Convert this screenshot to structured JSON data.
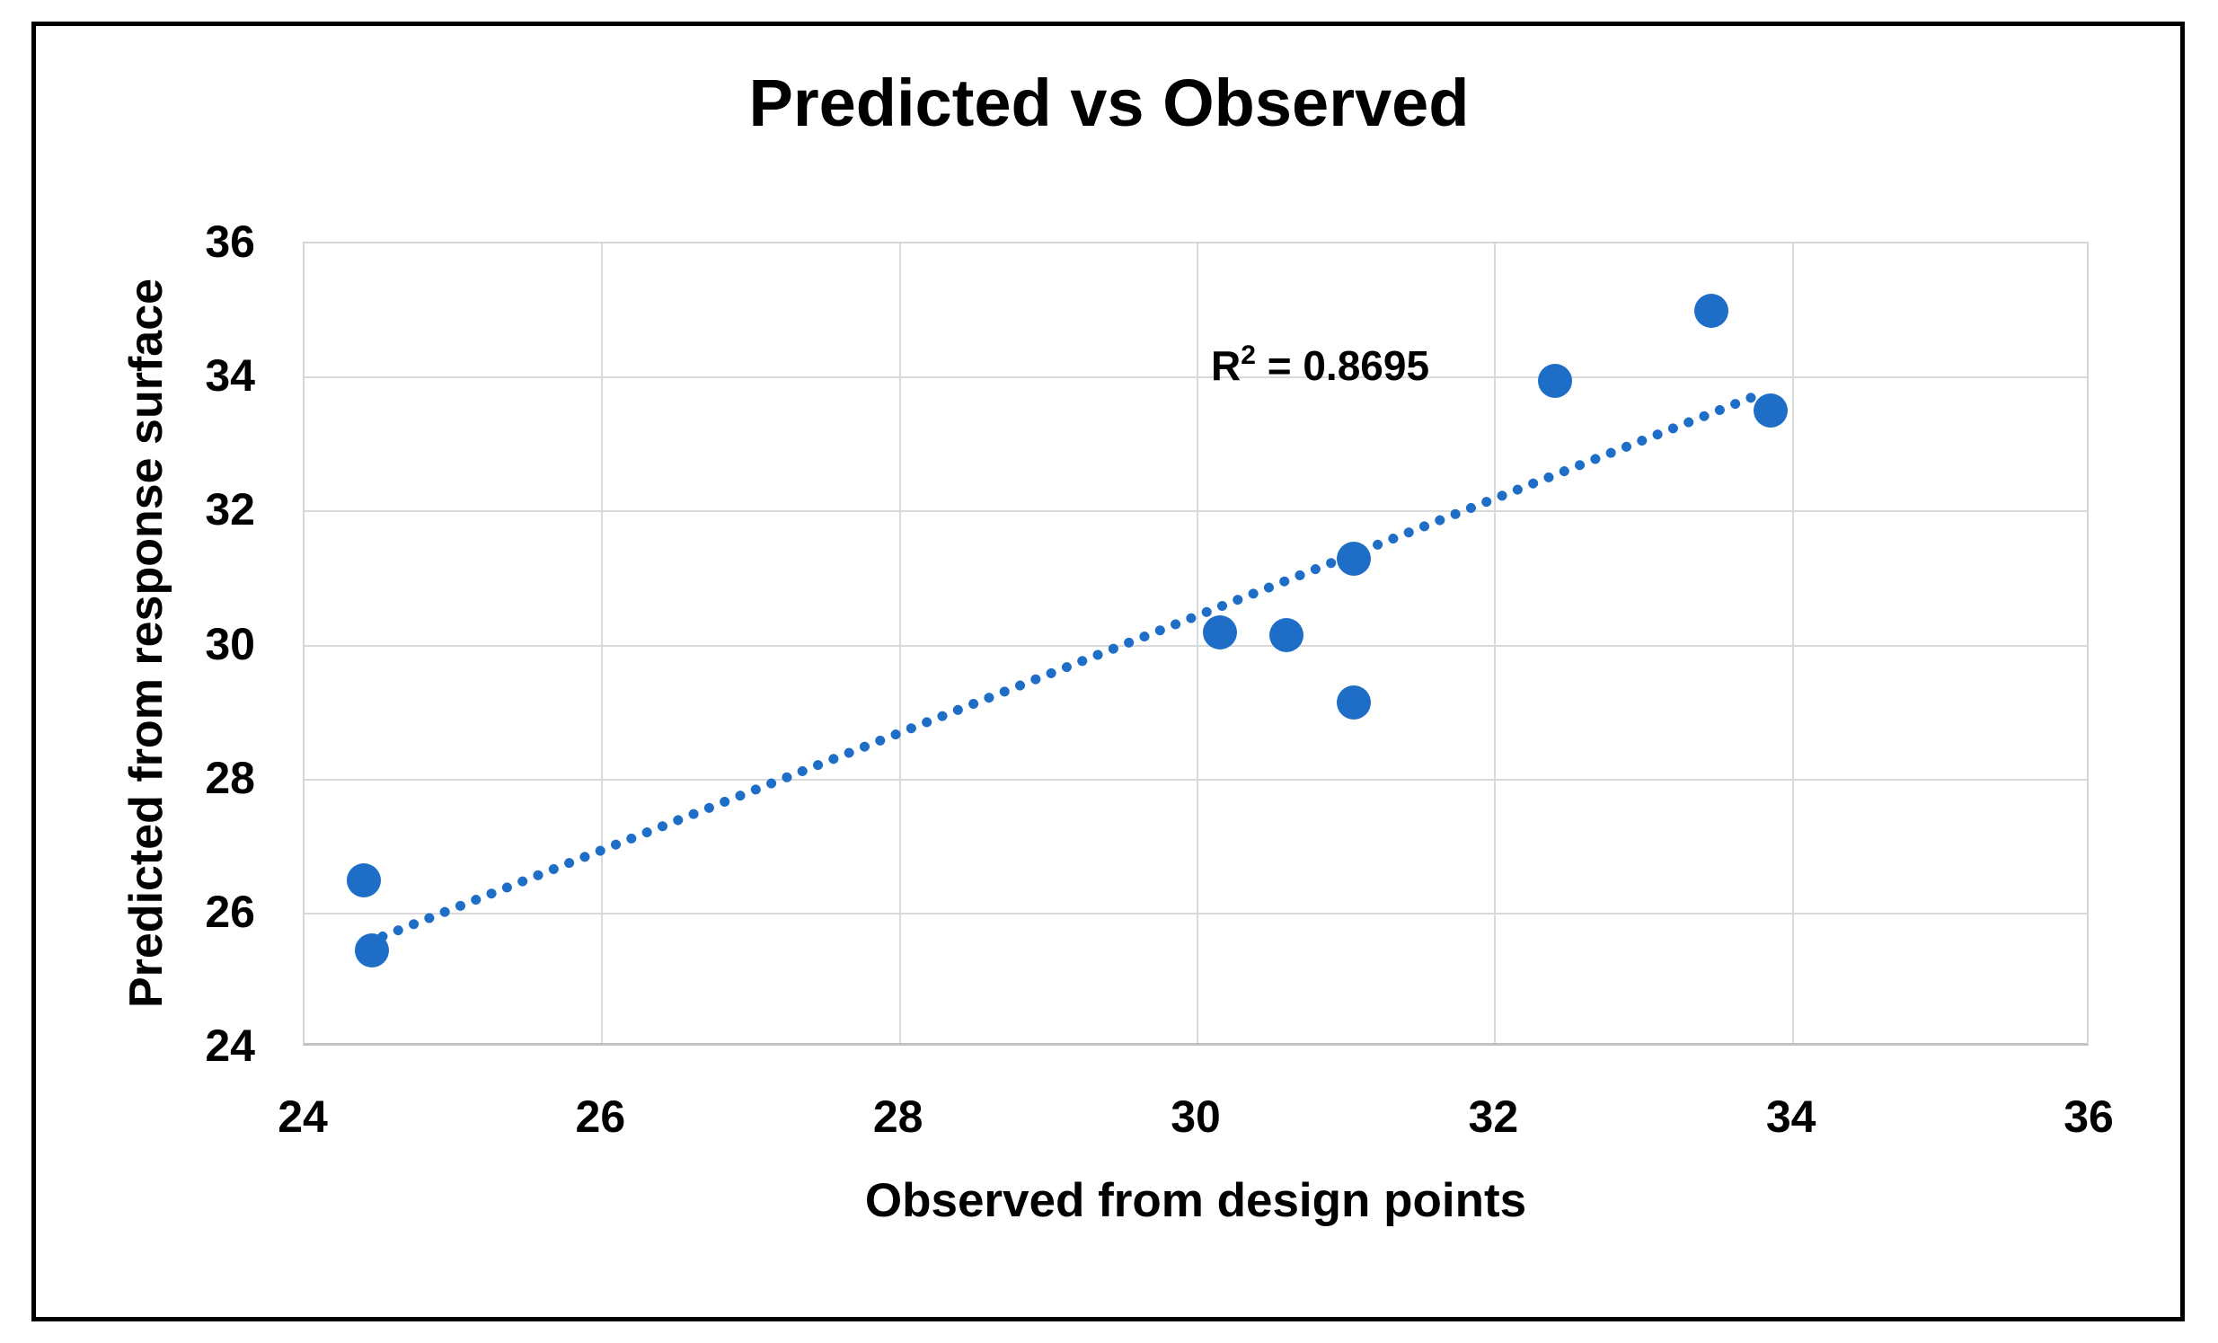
{
  "chart_data": {
    "type": "scatter",
    "title": "Predicted vs Observed",
    "xlabel": "Observed from design points",
    "ylabel": "Predicted from response surface",
    "xlim": [
      24,
      36
    ],
    "ylim": [
      24,
      36
    ],
    "xticks": [
      24,
      26,
      28,
      30,
      32,
      34,
      36
    ],
    "yticks": [
      24,
      26,
      28,
      30,
      32,
      34,
      36
    ],
    "grid": true,
    "legend": "none",
    "points": [
      {
        "x": 24.4,
        "y": 26.5
      },
      {
        "x": 24.45,
        "y": 25.45
      },
      {
        "x": 30.15,
        "y": 30.2
      },
      {
        "x": 30.6,
        "y": 30.15
      },
      {
        "x": 31.05,
        "y": 31.3
      },
      {
        "x": 31.05,
        "y": 29.15
      },
      {
        "x": 32.4,
        "y": 33.95
      },
      {
        "x": 33.45,
        "y": 35.0
      },
      {
        "x": 33.85,
        "y": 33.5
      }
    ],
    "trendline": {
      "style": "dotted",
      "slope": 0.8745,
      "intercept": 4.21,
      "x_start": 24.42,
      "x_end": 33.8
    },
    "annotation": {
      "base": "R",
      "exponent": "2",
      "value_text": " = 0.8695"
    },
    "colors": {
      "marker": "#1e6ec8",
      "trendline": "#1e6ec8",
      "gridline": "#d9d9d9",
      "text": "#000000",
      "frame_border": "#000000",
      "background": "#ffffff"
    }
  }
}
